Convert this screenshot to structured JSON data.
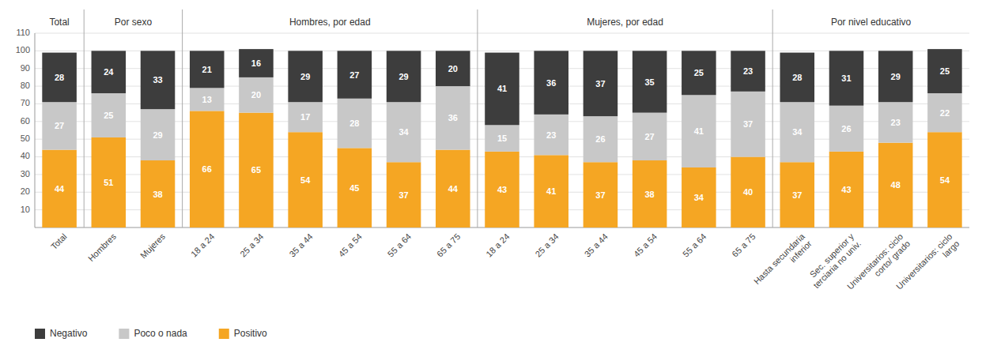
{
  "chart_data": {
    "type": "bar",
    "stacked": true,
    "data_labels": true,
    "grid": true,
    "legend": "bottom",
    "categories": [
      "Total",
      "Hombres",
      "Mujeres",
      "18 a 24",
      "25 a 34",
      "35 a 44",
      "45 a 54",
      "55 a 64",
      "65 a 75",
      "18 a 24",
      "25 a 34",
      "35 a 44",
      "45 a 54",
      "55 a 64",
      "65 a 75",
      "Hasta secundaria\ninferior",
      "Sec. superior y\nterciaria no univ.",
      "Universitarios: ciclo\ncorto/ grado",
      "Universitarios: ciclo\nlargo"
    ],
    "series": [
      {
        "name": "Positivo",
        "color": "#F5A623",
        "values": [
          44,
          51,
          38,
          66,
          65,
          54,
          45,
          37,
          44,
          43,
          41,
          37,
          38,
          34,
          40,
          37,
          43,
          48,
          54
        ]
      },
      {
        "name": "Poco o nada",
        "color": "#C8C8C8",
        "values": [
          27,
          25,
          29,
          13,
          20,
          17,
          28,
          34,
          36,
          15,
          23,
          26,
          27,
          41,
          37,
          34,
          26,
          23,
          22
        ]
      },
      {
        "name": "Negativo",
        "color": "#3D3D3D",
        "values": [
          28,
          24,
          33,
          21,
          16,
          29,
          27,
          29,
          20,
          41,
          36,
          37,
          35,
          25,
          23,
          28,
          31,
          29,
          25
        ]
      }
    ],
    "annotations": [
      "Total",
      "Por sexo",
      "Hombres, por edad",
      "Mujeres, por edad",
      "Por nivel educativo"
    ],
    "ylim": [
      0,
      110
    ],
    "yticks": [
      10,
      20,
      30,
      40,
      50,
      60,
      70,
      80,
      90,
      100,
      110
    ]
  }
}
